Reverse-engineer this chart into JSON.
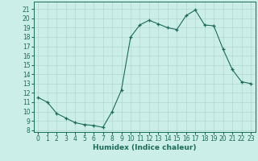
{
  "x": [
    0,
    1,
    2,
    3,
    4,
    5,
    6,
    7,
    8,
    9,
    10,
    11,
    12,
    13,
    14,
    15,
    16,
    17,
    18,
    19,
    20,
    21,
    22,
    23
  ],
  "y": [
    11.5,
    11.0,
    9.8,
    9.3,
    8.8,
    8.6,
    8.5,
    8.3,
    10.0,
    12.3,
    18.0,
    19.3,
    19.8,
    19.4,
    19.0,
    18.8,
    20.3,
    20.9,
    19.3,
    19.2,
    16.7,
    14.5,
    13.2,
    13.0
  ],
  "xlabel": "Humidex (Indice chaleur)",
  "xlim": [
    -0.5,
    23.5
  ],
  "ylim": [
    7.8,
    21.8
  ],
  "yticks": [
    8,
    9,
    10,
    11,
    12,
    13,
    14,
    15,
    16,
    17,
    18,
    19,
    20,
    21
  ],
  "xticks": [
    0,
    1,
    2,
    3,
    4,
    5,
    6,
    7,
    8,
    9,
    10,
    11,
    12,
    13,
    14,
    15,
    16,
    17,
    18,
    19,
    20,
    21,
    22,
    23
  ],
  "line_color": "#1a6b5a",
  "marker": "+",
  "bg_color": "#cceee8",
  "grid_color": "#b0d8d0",
  "label_fontsize": 6.5,
  "tick_fontsize": 5.5
}
